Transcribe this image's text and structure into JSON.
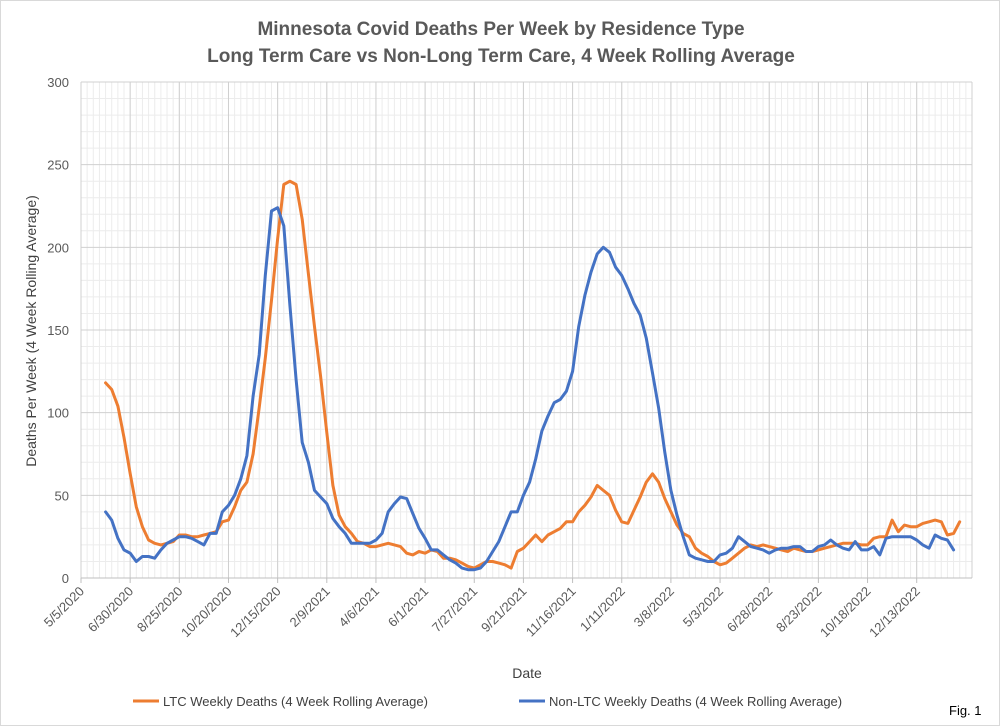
{
  "chart_data": {
    "type": "line",
    "title": "Minnesota Covid Deaths Per Week by Residence Type",
    "subtitle": "Long Term Care vs Non-Long Term Care, 4 Week Rolling Average",
    "xlabel": "Date",
    "ylabel": "Deaths Per Week (4 Week Rolling Average)",
    "ylim": [
      0,
      300
    ],
    "yticks": [
      0,
      50,
      100,
      150,
      200,
      250,
      300
    ],
    "xlim": [
      "2020-05-05",
      "2023-02-14"
    ],
    "xtick_labels": [
      "5/5/2020",
      "6/30/2020",
      "8/25/2020",
      "10/20/2020",
      "12/15/2020",
      "2/9/2021",
      "4/6/2021",
      "6/1/2021",
      "7/27/2021",
      "9/21/2021",
      "11/16/2021",
      "1/11/2022",
      "3/8/2022",
      "5/3/2022",
      "6/28/2022",
      "8/23/2022",
      "10/18/2022",
      "12/13/2022"
    ],
    "grid": true,
    "legend_position": "bottom",
    "series": [
      {
        "name": "LTC Weekly Deaths (4 Week Rolling Average)",
        "color": "#ed7d31",
        "x_start": "2020-06-02",
        "x_step_days": 7,
        "values": [
          118,
          114,
          104,
          85,
          63,
          43,
          31,
          23,
          21,
          20,
          21,
          22,
          26,
          26,
          25,
          25,
          26,
          27,
          28,
          34,
          35,
          43,
          53,
          58,
          75,
          103,
          133,
          168,
          205,
          238,
          240,
          238,
          217,
          184,
          152,
          122,
          88,
          56,
          38,
          31,
          27,
          22,
          21,
          19,
          19,
          20,
          21,
          20,
          19,
          15,
          14,
          16,
          15,
          17,
          16,
          12,
          12,
          11,
          9,
          7,
          6,
          8,
          10,
          10,
          9,
          8,
          6,
          16,
          18,
          22,
          26,
          22,
          26,
          28,
          30,
          34,
          34,
          40,
          44,
          49,
          56,
          53,
          50,
          41,
          34,
          33,
          41,
          49,
          58,
          63,
          58,
          48,
          40,
          32,
          27,
          25,
          18,
          15,
          13,
          10,
          8,
          9,
          12,
          15,
          18,
          20,
          19,
          20,
          19,
          18,
          17,
          16,
          18,
          17,
          16,
          16,
          17,
          18,
          19,
          20,
          21,
          21,
          21,
          20,
          20,
          24,
          25,
          25,
          35,
          28,
          32,
          31,
          31,
          33,
          34,
          35,
          34,
          26,
          27,
          34
        ]
      },
      {
        "name": "Non-LTC Weekly Deaths (4 Week Rolling Average)",
        "color": "#4472c4",
        "x_start": "2020-06-02",
        "x_step_days": 7,
        "values": [
          40,
          35,
          24,
          17,
          15,
          10,
          13,
          13,
          12,
          17,
          21,
          23,
          25,
          25,
          24,
          22,
          20,
          27,
          27,
          40,
          44,
          50,
          60,
          74,
          110,
          135,
          183,
          222,
          224,
          213,
          165,
          120,
          82,
          70,
          53,
          49,
          45,
          36,
          31,
          27,
          21,
          21,
          21,
          21,
          23,
          27,
          40,
          45,
          49,
          48,
          39,
          30,
          24,
          17,
          17,
          14,
          11,
          9,
          6,
          5,
          5,
          6,
          10,
          16,
          22,
          31,
          40,
          40,
          50,
          58,
          72,
          89,
          98,
          106,
          108,
          113,
          125,
          152,
          171,
          185,
          196,
          200,
          197,
          188,
          183,
          175,
          166,
          159,
          145,
          124,
          103,
          76,
          53,
          38,
          25,
          14,
          12,
          11,
          10,
          10,
          14,
          15,
          18,
          25,
          22,
          19,
          18,
          17,
          15,
          17,
          18,
          18,
          19,
          19,
          16,
          16,
          19,
          20,
          23,
          20,
          18,
          17,
          22,
          17,
          17,
          19,
          14,
          24,
          25,
          25,
          25,
          25,
          23,
          20,
          18,
          26,
          24,
          23,
          17
        ]
      }
    ]
  },
  "figure_label": "Fig. 1"
}
